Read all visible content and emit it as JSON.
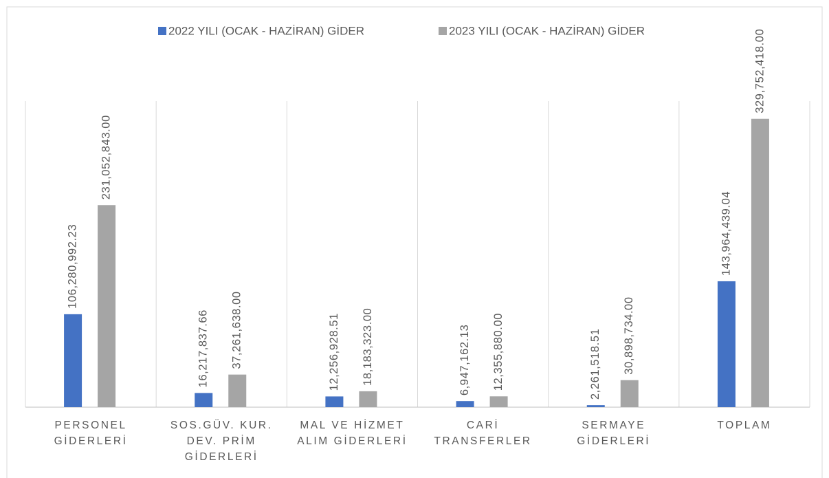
{
  "chart_data": {
    "type": "bar",
    "categories": [
      "PERSONEL GİDERLERİ",
      "SOS.GÜV. KUR. DEV. PRİM GİDERLERİ",
      "MAL VE HİZMET ALIM GİDERLERİ",
      "CARİ TRANSFERLER",
      "SERMAYE GİDERLERİ",
      "TOPLAM"
    ],
    "series": [
      {
        "name": "2022 YILI (OCAK - HAZİRAN) GİDER",
        "color": "#4472c4",
        "values": [
          106280992.23,
          16217837.66,
          12256928.51,
          6947162.13,
          2261518.51,
          143964439.04
        ],
        "value_labels": [
          "106,280,992.23",
          "16,217,837.66",
          "12,256,928.51",
          "6,947,162.13",
          "2,261,518.51",
          "143,964,439.04"
        ]
      },
      {
        "name": "2023 YILI (OCAK - HAZİRAN) GİDER",
        "color": "#a5a5a5",
        "values": [
          231052843.0,
          37261638.0,
          18183323.0,
          12355880.0,
          30898734.0,
          329752418.0
        ],
        "value_labels": [
          "231,052,843.00",
          "37,261,638.00",
          "18,183,323.00",
          "12,355,880.00",
          "30,898,734.00",
          "329,752,418.00"
        ]
      }
    ],
    "ylim": [
      0,
      350000000
    ]
  }
}
